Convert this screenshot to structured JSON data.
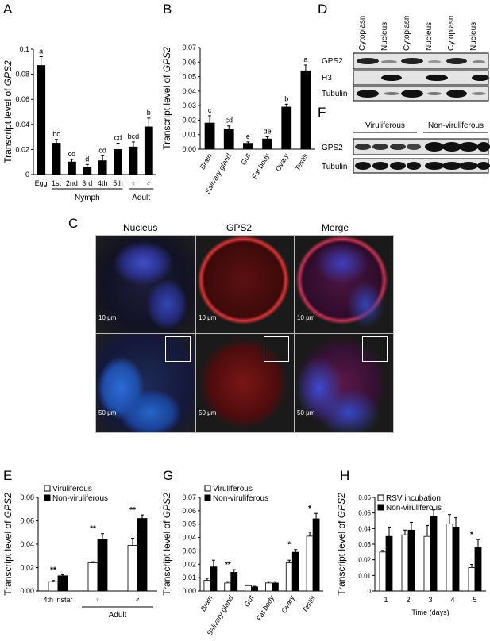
{
  "panels": {
    "A": "A",
    "B": "B",
    "C": "C",
    "D": "D",
    "E": "E",
    "F": "F",
    "G": "G",
    "H": "H"
  },
  "ylabel_pre": "Transcript level of ",
  "ylabel_gene": "GPS2",
  "chart_data": [
    {
      "id": "A",
      "type": "bar",
      "categories": [
        "Egg",
        "1st",
        "2nd",
        "3rd",
        "4th",
        "5th",
        "♀",
        "♂"
      ],
      "values": [
        0.087,
        0.025,
        0.01,
        0.006,
        0.011,
        0.02,
        0.022,
        0.038
      ],
      "errors": [
        0.007,
        0.003,
        0.002,
        0.002,
        0.004,
        0.005,
        0.004,
        0.007
      ],
      "letters": [
        "a",
        "bc",
        "cd",
        "d",
        "cd",
        "cd",
        "bcd",
        "b"
      ],
      "groups": [
        {
          "label": "Nymph",
          "from": 1,
          "to": 5
        },
        {
          "label": "Adult",
          "from": 6,
          "to": 7
        }
      ],
      "ylim": [
        0,
        0.1
      ],
      "yticks": [
        "0",
        "0.02",
        "0.04",
        "0.06",
        "0.08",
        "0.1"
      ]
    },
    {
      "id": "B",
      "type": "bar",
      "categories": [
        "Brain",
        "Salivary gland",
        "Gut",
        "Fat body",
        "Ovary",
        "Testis"
      ],
      "values": [
        0.018,
        0.014,
        0.004,
        0.007,
        0.029,
        0.054
      ],
      "errors": [
        0.005,
        0.002,
        0.001,
        0.0015,
        0.002,
        0.004
      ],
      "letters": [
        "c",
        "cd",
        "e",
        "de",
        "b",
        "a"
      ],
      "ylim": [
        0,
        0.07
      ],
      "yticks": [
        "0.00",
        "0.01",
        "0.02",
        "0.03",
        "0.04",
        "0.05",
        "0.06",
        "0.07"
      ]
    },
    {
      "id": "E",
      "type": "bar",
      "categories": [
        "4th instar",
        "♀",
        "♂"
      ],
      "series": [
        {
          "name": "Viruliferous",
          "values": [
            0.008,
            0.024,
            0.039
          ],
          "errors": [
            0.001,
            0.001,
            0.006
          ]
        },
        {
          "name": "Non-viruliferous",
          "values": [
            0.013,
            0.044,
            0.062
          ],
          "errors": [
            0.001,
            0.005,
            0.003
          ]
        }
      ],
      "sig": [
        "**",
        "**",
        "**"
      ],
      "group_label": "Adult",
      "ylim": [
        0,
        0.08
      ],
      "yticks": [
        "0.00",
        "0.02",
        "0.04",
        "0.06",
        "0.08"
      ]
    },
    {
      "id": "G",
      "type": "bar",
      "categories": [
        "Brain",
        "Salivary gland",
        "Gut",
        "Fat body",
        "Ovary",
        "Testis"
      ],
      "series": [
        {
          "name": "Viruliferous",
          "values": [
            0.008,
            0.006,
            0.004,
            0.006,
            0.021,
            0.041
          ],
          "errors": [
            0.0015,
            0.001,
            0.0005,
            0.001,
            0.002,
            0.003
          ]
        },
        {
          "name": "Non-viruliferous",
          "values": [
            0.018,
            0.014,
            0.003,
            0.006,
            0.029,
            0.054
          ],
          "errors": [
            0.005,
            0.002,
            0.0005,
            0.001,
            0.002,
            0.004
          ]
        }
      ],
      "sig": [
        "",
        "**",
        "",
        "",
        "*",
        "*"
      ],
      "ylim": [
        0,
        0.07
      ],
      "yticks": [
        "0.00",
        "0.01",
        "0.02",
        "0.03",
        "0.04",
        "0.05",
        "0.06",
        "0.07"
      ]
    },
    {
      "id": "H",
      "type": "bar",
      "categories": [
        "1",
        "2",
        "3",
        "4",
        "5"
      ],
      "series": [
        {
          "name": "RSV incubation",
          "values": [
            0.025,
            0.036,
            0.035,
            0.043,
            0.015
          ],
          "errors": [
            0.001,
            0.003,
            0.007,
            0.006,
            0.002
          ]
        },
        {
          "name": "Non-viruliferous",
          "values": [
            0.035,
            0.039,
            0.048,
            0.041,
            0.028
          ],
          "errors": [
            0.006,
            0.005,
            0.004,
            0.006,
            0.005
          ]
        }
      ],
      "sig": [
        "",
        "",
        "",
        "",
        "*"
      ],
      "xlabel": "Time (days)",
      "ylim": [
        0,
        0.06
      ],
      "yticks": [
        "0",
        "0.01",
        "0.02",
        "0.03",
        "0.04",
        "0.05",
        "0.06"
      ]
    }
  ],
  "panelC": {
    "columns": [
      "Nucleus",
      "GPS2",
      "Merge"
    ],
    "scales": [
      "10 μm",
      "10 μm",
      "10 μm",
      "50 μm",
      "50 μm",
      "50 μm"
    ]
  },
  "panelD": {
    "columns": [
      "Cytoplasm",
      "Nucleus",
      "Cytoplasm",
      "Nucleus",
      "Cytoplasm",
      "Nucleus"
    ],
    "rows": [
      "GPS2",
      "H3",
      "Tubulin"
    ]
  },
  "panelF": {
    "groups": [
      "Viruliferous",
      "Non-viruliferous"
    ],
    "rows": [
      "GPS2",
      "Tubulin"
    ]
  }
}
